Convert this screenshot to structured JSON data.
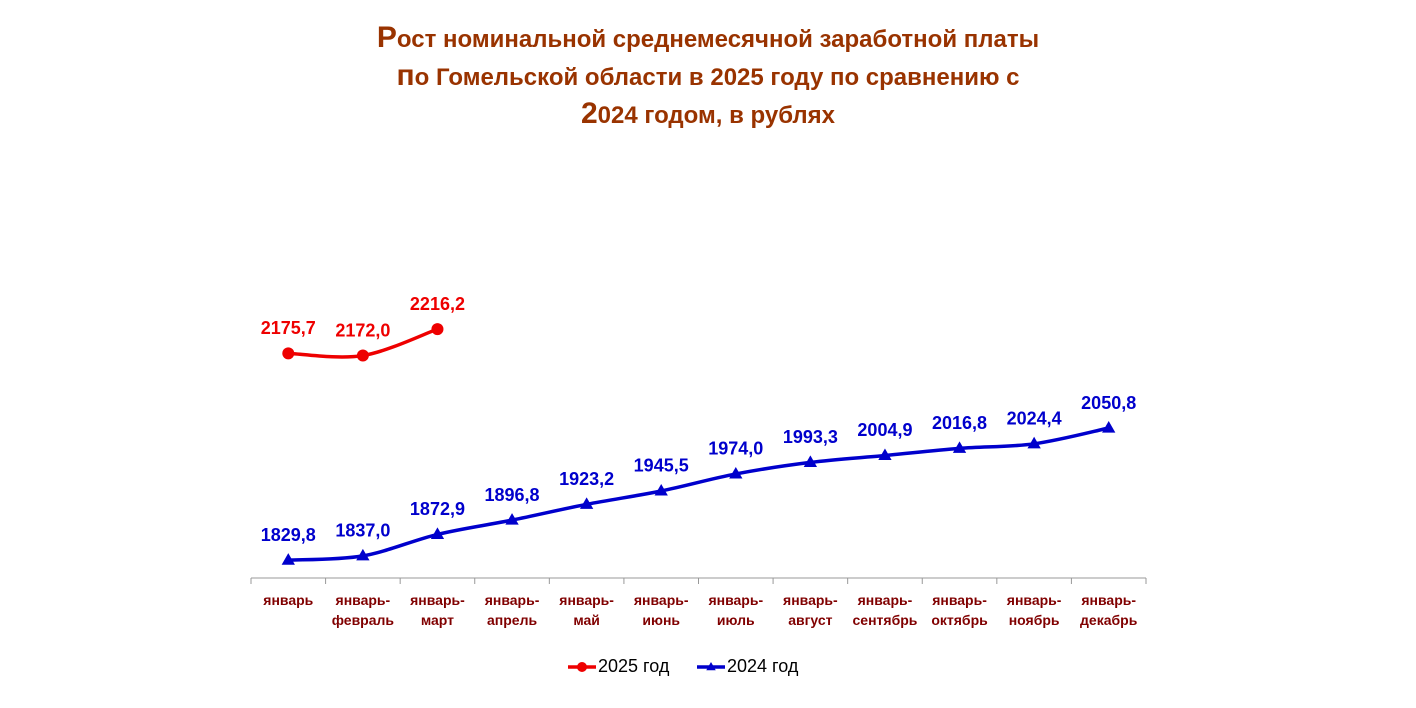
{
  "chart_data": {
    "type": "line",
    "title": [
      "Рост номинальной среднемесячной заработной платы",
      "по Гомельской области в 2025 году по сравнению с",
      "2024 годом, в рублях"
    ],
    "categories": [
      "январь",
      "январь-февраль",
      "январь-март",
      "январь-апрель",
      "январь-май",
      "январь-июнь",
      "январь-июль",
      "январь-август",
      "январь-сентябрь",
      "январь-октябрь",
      "январь-ноябрь",
      "январь-декабрь"
    ],
    "series": [
      {
        "name": "2025 год",
        "color": "#ee0000",
        "marker": "circle",
        "values": [
          2175.7,
          2172.0,
          2216.2,
          null,
          null,
          null,
          null,
          null,
          null,
          null,
          null,
          null
        ],
        "value_labels": [
          "2175,7",
          "2172,0",
          "2216,2",
          null,
          null,
          null,
          null,
          null,
          null,
          null,
          null,
          null
        ]
      },
      {
        "name": "2024 год",
        "color": "#0000cc",
        "marker": "triangle",
        "values": [
          1829.8,
          1837.0,
          1872.9,
          1896.8,
          1923.2,
          1945.5,
          1974.0,
          1993.3,
          2004.9,
          2016.8,
          2024.4,
          2050.8
        ],
        "value_labels": [
          "1829,8",
          "1837,0",
          "1872,9",
          "1896,8",
          "1923,2",
          "1945,5",
          "1974,0",
          "1993,3",
          "2004,9",
          "2016,8",
          "2024,4",
          "2050,8"
        ]
      }
    ],
    "ylim": [
      1800,
      2300
    ],
    "legend": "bottom"
  }
}
